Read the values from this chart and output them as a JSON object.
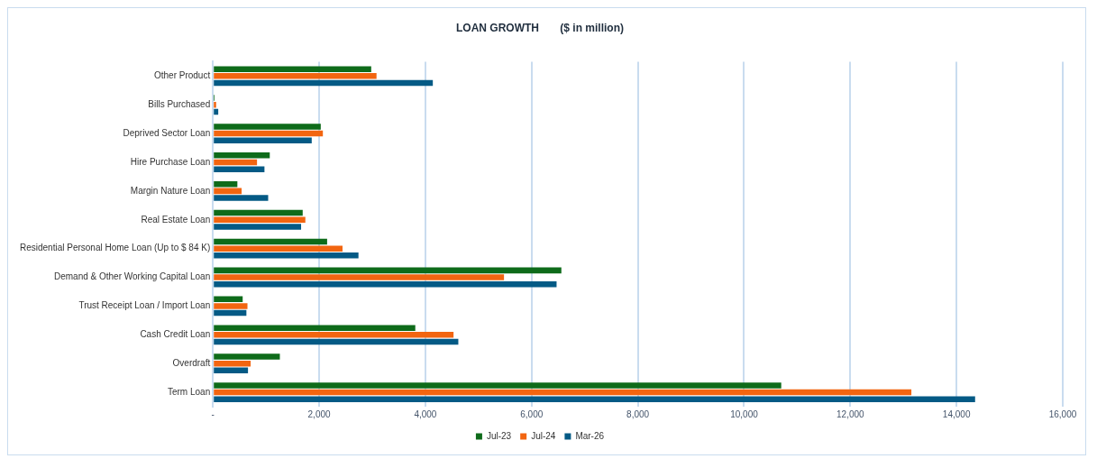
{
  "chart_data": {
    "type": "bar",
    "orientation": "horizontal",
    "title": "LOAN GROWTH       ($ in million)",
    "categories": [
      "Other Product",
      "Bills Purchased",
      "Deprived Sector Loan",
      "Hire Purchase Loan",
      "Margin Nature Loan",
      "Real Estate Loan",
      "Residential Personal Home Loan (Up to $ 84 K)",
      "Demand & Other Working Capital Loan",
      "Trust Receipt Loan / Import Loan",
      "Cash Credit Loan",
      "Overdraft",
      "Term Loan"
    ],
    "series": [
      {
        "name": "Jul-23",
        "color": "#0e6b1a",
        "values": [
          2980,
          30,
          2030,
          1070,
          460,
          1690,
          2150,
          6560,
          560,
          3810,
          1260,
          10700
        ]
      },
      {
        "name": "Jul-24",
        "color": "#f26510",
        "values": [
          3080,
          60,
          2070,
          830,
          540,
          1740,
          2440,
          5480,
          650,
          4530,
          710,
          13150
        ]
      },
      {
        "name": "Mar-26",
        "color": "#045a85",
        "values": [
          4140,
          100,
          1860,
          970,
          1040,
          1660,
          2740,
          6470,
          630,
          4620,
          660,
          14350
        ]
      }
    ],
    "xlim": [
      0,
      16000
    ],
    "xticks": [
      {
        "value": 0,
        "label": "-"
      },
      {
        "value": 2000,
        "label": "2,000"
      },
      {
        "value": 4000,
        "label": "4,000"
      },
      {
        "value": 6000,
        "label": "6,000"
      },
      {
        "value": 8000,
        "label": "8,000"
      },
      {
        "value": 10000,
        "label": "10,000"
      },
      {
        "value": 12000,
        "label": "12,000"
      },
      {
        "value": 14000,
        "label": "14,000"
      },
      {
        "value": 16000,
        "label": "16,000"
      }
    ],
    "grid": "x",
    "legend": "bottom"
  }
}
